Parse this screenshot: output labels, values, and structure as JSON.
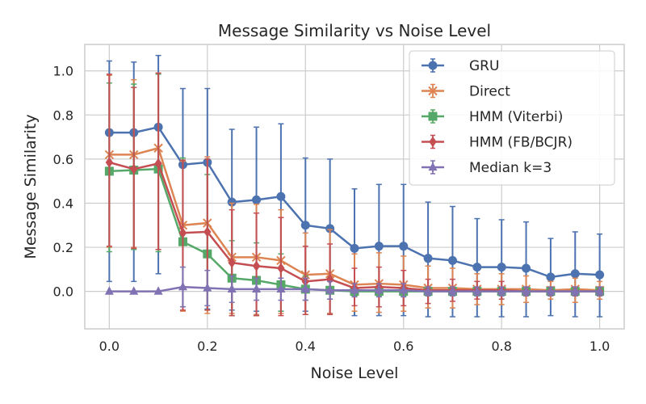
{
  "chart_data": {
    "type": "line",
    "title": "Message Similarity vs Noise Level",
    "xlabel": "Noise Level",
    "ylabel": "Message Similarity",
    "xlim": [
      -0.05,
      1.05
    ],
    "ylim": [
      -0.17,
      1.12
    ],
    "xticks": [
      0.0,
      0.2,
      0.4,
      0.6,
      0.8,
      1.0
    ],
    "xtick_labels": [
      "0.0",
      "0.2",
      "0.4",
      "0.6",
      "0.8",
      "1.0"
    ],
    "yticks": [
      0.0,
      0.2,
      0.4,
      0.6,
      0.8,
      1.0
    ],
    "ytick_labels": [
      "0.0",
      "0.2",
      "0.4",
      "0.6",
      "0.8",
      "1.0"
    ],
    "grid": true,
    "legend_position": "top-right",
    "x": [
      0.0,
      0.05,
      0.1,
      0.15,
      0.2,
      0.25,
      0.3,
      0.35,
      0.4,
      0.45,
      0.5,
      0.55,
      0.6,
      0.65,
      0.7,
      0.75,
      0.8,
      0.85,
      0.9,
      0.95,
      1.0
    ],
    "series": [
      {
        "name": "GRU",
        "color": "#4c72b0",
        "marker": "circle",
        "values": [
          0.72,
          0.72,
          0.745,
          0.575,
          0.585,
          0.405,
          0.415,
          0.43,
          0.3,
          0.285,
          0.195,
          0.205,
          0.205,
          0.15,
          0.14,
          0.11,
          0.11,
          0.105,
          0.065,
          0.08,
          0.075
        ],
        "err_lower": [
          0.675,
          0.675,
          0.665,
          0.645,
          0.665,
          0.49,
          0.505,
          0.52,
          0.39,
          0.385,
          0.305,
          0.315,
          0.315,
          0.265,
          0.255,
          0.225,
          0.225,
          0.22,
          0.175,
          0.195,
          0.19
        ],
        "err_upper": [
          0.325,
          0.32,
          0.325,
          0.345,
          0.335,
          0.33,
          0.33,
          0.33,
          0.305,
          0.315,
          0.27,
          0.28,
          0.28,
          0.255,
          0.245,
          0.22,
          0.215,
          0.21,
          0.175,
          0.19,
          0.185
        ]
      },
      {
        "name": "Direct",
        "color": "#dd8452",
        "marker": "x",
        "values": [
          0.62,
          0.62,
          0.65,
          0.3,
          0.31,
          0.155,
          0.155,
          0.14,
          0.075,
          0.08,
          0.03,
          0.035,
          0.03,
          0.015,
          0.015,
          0.01,
          0.01,
          0.01,
          0.005,
          0.01,
          0.005
        ],
        "err_lower": [
          0.42,
          0.42,
          0.46,
          0.39,
          0.41,
          0.255,
          0.26,
          0.24,
          0.18,
          0.18,
          0.12,
          0.13,
          0.12,
          0.09,
          0.09,
          0.07,
          0.07,
          0.06,
          0.04,
          0.06,
          0.04
        ],
        "err_upper": [
          0.36,
          0.34,
          0.34,
          0.29,
          0.3,
          0.245,
          0.24,
          0.23,
          0.19,
          0.2,
          0.14,
          0.14,
          0.13,
          0.1,
          0.09,
          0.07,
          0.07,
          0.06,
          0.04,
          0.05,
          0.04
        ]
      },
      {
        "name": "HMM (Viterbi)",
        "color": "#55a868",
        "marker": "square",
        "values": [
          0.545,
          0.55,
          0.555,
          0.225,
          0.17,
          0.06,
          0.05,
          0.03,
          0.01,
          0.005,
          0.0,
          0.0,
          0.0,
          0.0,
          0.0,
          0.0,
          0.0,
          0.0,
          0.0,
          0.0,
          0.0
        ],
        "err_lower": [
          0.365,
          0.36,
          0.375,
          0.295,
          0.255,
          0.17,
          0.16,
          0.12,
          0.05,
          0.04,
          0.02,
          0.02,
          0.02,
          0.02,
          0.02,
          0.02,
          0.02,
          0.02,
          0.02,
          0.02,
          0.02
        ],
        "err_upper": [
          0.4,
          0.39,
          0.43,
          0.38,
          0.36,
          0.17,
          0.17,
          0.14,
          0.06,
          0.04,
          0.02,
          0.02,
          0.02,
          0.02,
          0.02,
          0.02,
          0.02,
          0.02,
          0.02,
          0.02,
          0.02
        ]
      },
      {
        "name": "HMM (FB/BCJR)",
        "color": "#c44e52",
        "marker": "diamond",
        "values": [
          0.585,
          0.555,
          0.58,
          0.265,
          0.27,
          0.13,
          0.115,
          0.105,
          0.045,
          0.055,
          0.015,
          0.02,
          0.015,
          0.005,
          0.005,
          0.005,
          0.005,
          0.0,
          0.0,
          0.0,
          0.0
        ],
        "err_lower": [
          0.38,
          0.36,
          0.39,
          0.35,
          0.355,
          0.24,
          0.225,
          0.215,
          0.15,
          0.16,
          0.08,
          0.09,
          0.08,
          0.06,
          0.05,
          0.04,
          0.04,
          0.02,
          0.02,
          0.02,
          0.02
        ],
        "err_upper": [
          0.4,
          0.37,
          0.41,
          0.33,
          0.33,
          0.24,
          0.24,
          0.23,
          0.16,
          0.16,
          0.09,
          0.09,
          0.08,
          0.05,
          0.05,
          0.04,
          0.04,
          0.02,
          0.02,
          0.02,
          0.02
        ]
      },
      {
        "name": "Median k=3",
        "color": "#8172b3",
        "marker": "triangle-up",
        "values": [
          0.0,
          0.0,
          0.0,
          0.02,
          0.015,
          0.01,
          0.01,
          0.01,
          0.01,
          0.005,
          0.005,
          0.005,
          0.005,
          0.0,
          0.0,
          0.0,
          0.0,
          0.0,
          0.0,
          0.0,
          0.0
        ],
        "err_lower": [
          0.0,
          0.0,
          0.0,
          0.09,
          0.08,
          0.06,
          0.05,
          0.05,
          0.05,
          0.04,
          0.03,
          0.03,
          0.03,
          0.02,
          0.02,
          0.02,
          0.02,
          0.02,
          0.02,
          0.02,
          0.02
        ],
        "err_upper": [
          0.0,
          0.0,
          0.0,
          0.09,
          0.08,
          0.06,
          0.05,
          0.05,
          0.05,
          0.04,
          0.03,
          0.03,
          0.03,
          0.02,
          0.02,
          0.02,
          0.02,
          0.02,
          0.02,
          0.02,
          0.02
        ]
      }
    ]
  }
}
